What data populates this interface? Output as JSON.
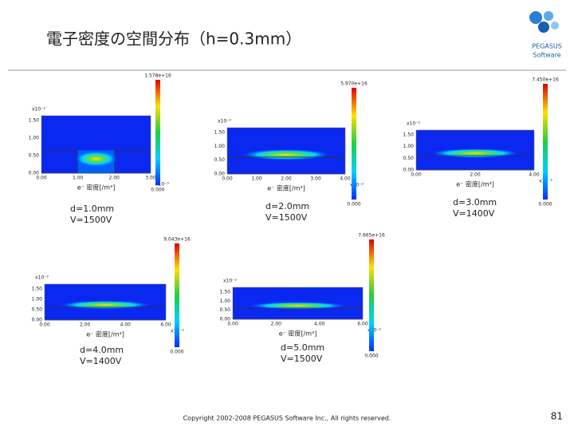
{
  "title": "電子密度の空間分布（h=0.3mm）",
  "logo": {
    "name": "PEGASUS",
    "sub": "Software"
  },
  "panels": [
    {
      "label_d": "d=1.0mm",
      "label_v": "V=1500V",
      "colorbar_max": "1.578e+16",
      "colorbar_min": "0.000",
      "y_exponent": "x10⁻³",
      "x_exponent": "x10⁻³",
      "yticks": [
        "1.50",
        "1.00",
        "0.50",
        "0.00"
      ],
      "xticks": [
        "0.00",
        "1.00",
        "2.00",
        "3.00"
      ],
      "x_label": "e⁻ 密度[/m³]"
    },
    {
      "label_d": "d=2.0mm",
      "label_v": "V=1500V",
      "colorbar_max": "5.970e+16",
      "colorbar_min": "0.000",
      "y_exponent": "x10⁻³",
      "x_exponent": "x10⁻³",
      "yticks": [
        "1.50",
        "1.00",
        "0.50",
        "0.00"
      ],
      "xticks": [
        "0.00",
        "1.00",
        "2.00",
        "3.00",
        "4.00"
      ],
      "x_label": "e⁻ 密度[/m³]"
    },
    {
      "label_d": "d=3.0mm",
      "label_v": "V=1400V",
      "colorbar_max": "7.450e+16",
      "colorbar_min": "0.000",
      "y_exponent": "x10⁻³",
      "x_exponent": "x10⁻³",
      "yticks": [
        "1.50",
        "1.00",
        "0.50",
        "0.00"
      ],
      "xticks": [
        "0.00",
        "2.00",
        "4.00"
      ],
      "x_label": "e⁻ 密度[/m³]"
    },
    {
      "label_d": "d=4.0mm",
      "label_v": "V=1400V",
      "colorbar_max": "9.043e+16",
      "colorbar_min": "0.000",
      "y_exponent": "x10⁻³",
      "x_exponent": "x10⁻³",
      "yticks": [
        "1.50",
        "1.00",
        "0.50",
        "0.00"
      ],
      "xticks": [
        "0.00",
        "2.00",
        "4.00",
        "6.00"
      ],
      "x_label": "e⁻ 密度[/m³]"
    },
    {
      "label_d": "d=5.0mm",
      "label_v": "V=1500V",
      "colorbar_max": "7.665e+16",
      "colorbar_min": "0.000",
      "y_exponent": "x10⁻³",
      "x_exponent": "x10⁻³",
      "yticks": [
        "1.50",
        "1.00",
        "0.50",
        "0.00"
      ],
      "xticks": [
        "0.00",
        "2.00",
        "4.00",
        "6.00"
      ],
      "x_label": "e⁻ 密度[/m³]"
    }
  ],
  "footer": "Copyright 2002-2008 PEGASUS Software Inc., All rights reserved.",
  "page_number": "81"
}
